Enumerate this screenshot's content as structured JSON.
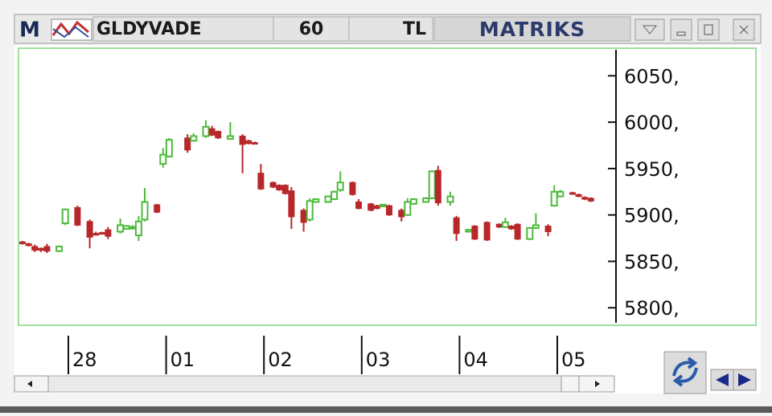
{
  "window": {
    "logo": "M",
    "symbol": "GLDYVADE",
    "period": "60",
    "currency": "TL",
    "brand": "MATRIKS"
  },
  "chart_data": {
    "type": "candlestick",
    "up_color": "#4cbb3a",
    "down_color": "#b8282a",
    "x": [
      0,
      1,
      2,
      3,
      4,
      6,
      7,
      9,
      11,
      12,
      13,
      14,
      16,
      17,
      18,
      19,
      20,
      22,
      23,
      24,
      27,
      28,
      30,
      31,
      32,
      34,
      36,
      37,
      38,
      39,
      41,
      42,
      43,
      44,
      46,
      47,
      48,
      50,
      51,
      52,
      54,
      55,
      57,
      58,
      59,
      60,
      62,
      63,
      64,
      66,
      67,
      68,
      70,
      71,
      73,
      74,
      76,
      78,
      79,
      80,
      81,
      83,
      84,
      86,
      87,
      88,
      90,
      91,
      92,
      93
    ],
    "open": [
      5871,
      5869,
      5866,
      5864,
      5866,
      5861,
      5891,
      5908,
      5893,
      5880,
      5881,
      5884,
      5882,
      5885,
      5886,
      5878,
      5895,
      5911,
      5955,
      5963,
      5983,
      5980,
      5985,
      5993,
      5990,
      5982,
      5985,
      5980,
      5978,
      5945,
      5935,
      5932,
      5932,
      5926,
      5905,
      5895,
      5914,
      5914,
      5917,
      5927,
      5935,
      5914,
      5912,
      5910,
      5910,
      5910,
      5905,
      5900,
      5912,
      5914,
      5918,
      5948,
      5914,
      5897,
      5882,
      5888,
      5892,
      5890,
      5887,
      5888,
      5890,
      5874,
      5886,
      5888,
      5910,
      5920,
      5924,
      5922,
      5919,
      5918
    ],
    "high": [
      5872,
      5870,
      5868,
      5865,
      5869,
      5867,
      5907,
      5910,
      5895,
      5882,
      5882,
      5887,
      5896,
      5889,
      5889,
      5899,
      5929,
      5912,
      5972,
      5983,
      5987,
      5988,
      6002,
      5996,
      5991,
      6000,
      5987,
      5981,
      5979,
      5955,
      5936,
      5933,
      5933,
      5930,
      5907,
      5918,
      5918,
      5921,
      5926,
      5947,
      5936,
      5917,
      5913,
      5911,
      5912,
      5911,
      5907,
      5918,
      5918,
      5919,
      5948,
      5953,
      5925,
      5899,
      5885,
      5889,
      5893,
      5891,
      5897,
      5889,
      5891,
      5887,
      5902,
      5890,
      5932,
      5927,
      5925,
      5923,
      5920,
      5919
    ],
    "low": [
      5868,
      5866,
      5860,
      5860,
      5859,
      5860,
      5889,
      5888,
      5864,
      5878,
      5879,
      5874,
      5880,
      5884,
      5885,
      5872,
      5893,
      5902,
      5951,
      5962,
      5967,
      5979,
      5983,
      5985,
      5982,
      5981,
      5945,
      5976,
      5976,
      5927,
      5929,
      5926,
      5922,
      5885,
      5882,
      5893,
      5913,
      5913,
      5916,
      5925,
      5921,
      5906,
      5904,
      5906,
      5909,
      5899,
      5893,
      5899,
      5911,
      5913,
      5917,
      5910,
      5910,
      5872,
      5881,
      5873,
      5872,
      5886,
      5886,
      5884,
      5873,
      5873,
      5885,
      5877,
      5909,
      5919,
      5922,
      5919,
      5916,
      5914
    ],
    "close": [
      5869,
      5867,
      5862,
      5862,
      5861,
      5866,
      5906,
      5889,
      5876,
      5879,
      5880,
      5877,
      5889,
      5888,
      5887,
      5893,
      5914,
      5903,
      5965,
      5981,
      5970,
      5985,
      5995,
      5986,
      5983,
      5985,
      5976,
      5977,
      5977,
      5928,
      5930,
      5927,
      5923,
      5898,
      5892,
      5915,
      5917,
      5920,
      5925,
      5935,
      5922,
      5907,
      5905,
      5907,
      5911,
      5900,
      5898,
      5914,
      5917,
      5918,
      5947,
      5913,
      5920,
      5880,
      5884,
      5874,
      5873,
      5887,
      5892,
      5885,
      5874,
      5886,
      5889,
      5882,
      5925,
      5925,
      5923,
      5920,
      5917,
      5915
    ],
    "xlim": [
      -0.5,
      97.5
    ],
    "xticks": [
      {
        "value": 7.5,
        "label": "28"
      },
      {
        "value": 23.5,
        "label": "01"
      },
      {
        "value": 39.5,
        "label": "02"
      },
      {
        "value": 55.5,
        "label": "03"
      },
      {
        "value": 71.5,
        "label": "04"
      },
      {
        "value": 87.5,
        "label": "05"
      }
    ],
    "ylim": [
      5782,
      6078
    ],
    "yticks": [
      {
        "value": 5800,
        "label": "5800,"
      },
      {
        "value": 5850,
        "label": "5850,"
      },
      {
        "value": 5900,
        "label": "5900,"
      },
      {
        "value": 5950,
        "label": "5950,"
      },
      {
        "value": 6000,
        "label": "6000,"
      },
      {
        "value": 6050,
        "label": "6050,"
      }
    ]
  }
}
